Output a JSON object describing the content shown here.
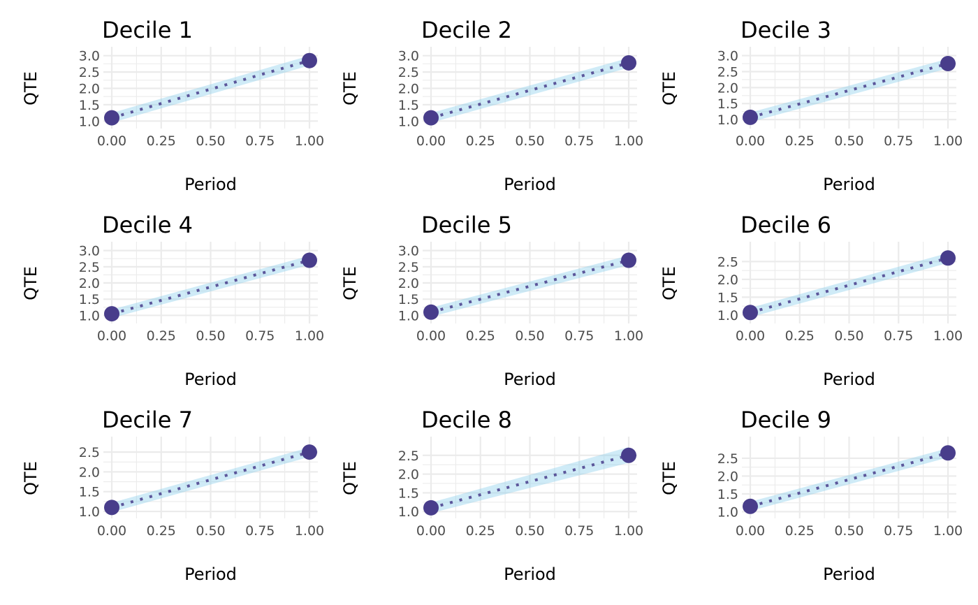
{
  "colors": {
    "ribbon": "#87ceeb",
    "line": "#483d8b",
    "point": "#483d8b",
    "grid": "#ebebeb",
    "tick_text": "#4d4d4d",
    "text": "#000000"
  },
  "chart_data": [
    {
      "type": "line",
      "title": "Decile 1",
      "xlabel": "Period",
      "ylabel": "QTE",
      "x": [
        0,
        1
      ],
      "y": [
        1.1,
        2.85
      ],
      "ci_lower": [
        0.95,
        2.7
      ],
      "ci_upper": [
        1.25,
        3.0
      ],
      "xlim": [
        0,
        1
      ],
      "ylim": [
        0.9,
        3.1
      ],
      "x_ticks": [
        "0.00",
        "0.25",
        "0.50",
        "0.75",
        "1.00"
      ],
      "y_ticks": [
        "1.0",
        "1.5",
        "2.0",
        "2.5",
        "3.0"
      ],
      "grid": true,
      "line_style": "dotted",
      "ribbon": true
    },
    {
      "type": "line",
      "title": "Decile 2",
      "xlabel": "Period",
      "ylabel": "QTE",
      "x": [
        0,
        1
      ],
      "y": [
        1.1,
        2.78
      ],
      "ci_lower": [
        0.95,
        2.63
      ],
      "ci_upper": [
        1.25,
        2.93
      ],
      "xlim": [
        0,
        1
      ],
      "ylim": [
        0.9,
        3.1
      ],
      "x_ticks": [
        "0.00",
        "0.25",
        "0.50",
        "0.75",
        "1.00"
      ],
      "y_ticks": [
        "1.0",
        "1.5",
        "2.0",
        "2.5",
        "3.0"
      ],
      "grid": true,
      "line_style": "dotted",
      "ribbon": true
    },
    {
      "type": "line",
      "title": "Decile 3",
      "xlabel": "Period",
      "ylabel": "QTE",
      "x": [
        0,
        1
      ],
      "y": [
        1.07,
        2.75
      ],
      "ci_lower": [
        0.92,
        2.6
      ],
      "ci_upper": [
        1.22,
        2.9
      ],
      "xlim": [
        0,
        1
      ],
      "ylim": [
        0.85,
        3.1
      ],
      "x_ticks": [
        "0.00",
        "0.25",
        "0.50",
        "0.75",
        "1.00"
      ],
      "y_ticks": [
        "1.0",
        "1.5",
        "2.0",
        "2.5",
        "3.0"
      ],
      "grid": true,
      "line_style": "dotted",
      "ribbon": true
    },
    {
      "type": "line",
      "title": "Decile 4",
      "xlabel": "Period",
      "ylabel": "QTE",
      "x": [
        0,
        1
      ],
      "y": [
        1.05,
        2.7
      ],
      "ci_lower": [
        0.92,
        2.56
      ],
      "ci_upper": [
        1.18,
        2.84
      ],
      "xlim": [
        0,
        1
      ],
      "ylim": [
        0.88,
        3.1
      ],
      "x_ticks": [
        "0.00",
        "0.25",
        "0.50",
        "0.75",
        "1.00"
      ],
      "y_ticks": [
        "1.0",
        "1.5",
        "2.0",
        "2.5",
        "3.0"
      ],
      "grid": true,
      "line_style": "dotted",
      "ribbon": true
    },
    {
      "type": "line",
      "title": "Decile 5",
      "xlabel": "Period",
      "ylabel": "QTE",
      "x": [
        0,
        1
      ],
      "y": [
        1.1,
        2.7
      ],
      "ci_lower": [
        0.96,
        2.55
      ],
      "ci_upper": [
        1.24,
        2.85
      ],
      "xlim": [
        0,
        1
      ],
      "ylim": [
        0.88,
        3.1
      ],
      "x_ticks": [
        "0.00",
        "0.25",
        "0.50",
        "0.75",
        "1.00"
      ],
      "y_ticks": [
        "1.0",
        "1.5",
        "2.0",
        "2.5",
        "3.0"
      ],
      "grid": true,
      "line_style": "dotted",
      "ribbon": true
    },
    {
      "type": "line",
      "title": "Decile 6",
      "xlabel": "Period",
      "ylabel": "QTE",
      "x": [
        0,
        1
      ],
      "y": [
        1.07,
        2.6
      ],
      "ci_lower": [
        0.94,
        2.46
      ],
      "ci_upper": [
        1.2,
        2.74
      ],
      "xlim": [
        0,
        1
      ],
      "ylim": [
        0.88,
        2.9
      ],
      "x_ticks": [
        "0.00",
        "0.25",
        "0.50",
        "0.75",
        "1.00"
      ],
      "y_ticks": [
        "1.0",
        "1.5",
        "2.0",
        "2.5"
      ],
      "grid": true,
      "line_style": "dotted",
      "ribbon": true
    },
    {
      "type": "line",
      "title": "Decile 7",
      "xlabel": "Period",
      "ylabel": "QTE",
      "x": [
        0,
        1
      ],
      "y": [
        1.1,
        2.5
      ],
      "ci_lower": [
        0.98,
        2.38
      ],
      "ci_upper": [
        1.22,
        2.62
      ],
      "xlim": [
        0,
        1
      ],
      "ylim": [
        0.93,
        2.75
      ],
      "x_ticks": [
        "0.00",
        "0.25",
        "0.50",
        "0.75",
        "1.00"
      ],
      "y_ticks": [
        "1.0",
        "1.5",
        "2.0",
        "2.5"
      ],
      "grid": true,
      "line_style": "dotted",
      "ribbon": true
    },
    {
      "type": "line",
      "title": "Decile 8",
      "xlabel": "Period",
      "ylabel": "QTE",
      "x": [
        0,
        1
      ],
      "y": [
        1.1,
        2.5
      ],
      "ci_lower": [
        0.96,
        2.3
      ],
      "ci_upper": [
        1.24,
        2.72
      ],
      "xlim": [
        0,
        1
      ],
      "ylim": [
        0.93,
        2.85
      ],
      "x_ticks": [
        "0.00",
        "0.25",
        "0.50",
        "0.75",
        "1.00"
      ],
      "y_ticks": [
        "1.0",
        "1.5",
        "2.0",
        "2.5"
      ],
      "grid": true,
      "line_style": "dotted",
      "ribbon": true
    },
    {
      "type": "line",
      "title": "Decile 9",
      "xlabel": "Period",
      "ylabel": "QTE",
      "x": [
        0,
        1
      ],
      "y": [
        1.15,
        2.65
      ],
      "ci_lower": [
        1.02,
        2.52
      ],
      "ci_upper": [
        1.28,
        2.78
      ],
      "xlim": [
        0,
        1
      ],
      "ylim": [
        0.93,
        2.95
      ],
      "x_ticks": [
        "0.00",
        "0.25",
        "0.50",
        "0.75",
        "1.00"
      ],
      "y_ticks": [
        "1.0",
        "1.5",
        "2.0",
        "2.5"
      ],
      "grid": true,
      "line_style": "dotted",
      "ribbon": true
    }
  ]
}
